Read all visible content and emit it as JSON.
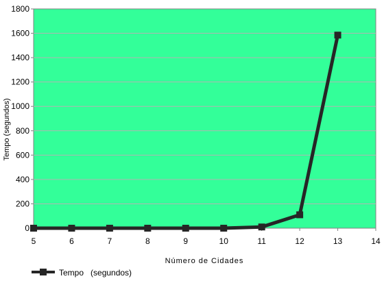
{
  "chart_data": {
    "type": "line",
    "xlabel": "Número de Cidades",
    "ylabel": "Tempo (segundos)",
    "xlim": [
      5,
      14
    ],
    "ylim": [
      0,
      1800
    ],
    "x_ticks": [
      "5",
      "6",
      "7",
      "8",
      "9",
      "10",
      "11",
      "12",
      "13",
      "14"
    ],
    "y_ticks": [
      "0",
      "200",
      "400",
      "600",
      "800",
      "1000",
      "1200",
      "1400",
      "1600",
      "1800"
    ],
    "grid": "horizontal",
    "legend_position": "bottom-left",
    "plot_background": "#33ff99",
    "line_color": "#262626",
    "series": [
      {
        "name": "Tempo   (segundos)",
        "x": [
          5,
          6,
          7,
          8,
          9,
          10,
          11,
          12,
          13
        ],
        "values": [
          0,
          0,
          0,
          0,
          0,
          0,
          10,
          110,
          1585
        ]
      }
    ]
  }
}
